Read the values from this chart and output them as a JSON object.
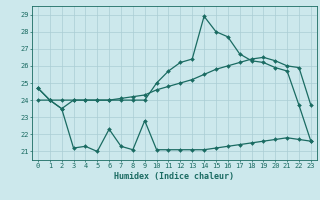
{
  "xlabel": "Humidex (Indice chaleur)",
  "bg_color": "#cce8ec",
  "grid_color": "#aacdd4",
  "line_color": "#1a6b62",
  "xlim": [
    -0.5,
    23.5
  ],
  "ylim": [
    20.5,
    29.5
  ],
  "xticks": [
    0,
    1,
    2,
    3,
    4,
    5,
    6,
    7,
    8,
    9,
    10,
    11,
    12,
    13,
    14,
    15,
    16,
    17,
    18,
    19,
    20,
    21,
    22,
    23
  ],
  "yticks": [
    21,
    22,
    23,
    24,
    25,
    26,
    27,
    28,
    29
  ],
  "line1_x": [
    0,
    1,
    2,
    3,
    4,
    5,
    6,
    7,
    8,
    9,
    10,
    11,
    12,
    13,
    14,
    15,
    16,
    17,
    18,
    19,
    20,
    21,
    22,
    23
  ],
  "line1_y": [
    24.7,
    24.0,
    23.5,
    21.2,
    21.3,
    21.0,
    22.3,
    21.3,
    21.1,
    22.8,
    21.1,
    21.1,
    21.1,
    21.1,
    21.1,
    21.2,
    21.3,
    21.4,
    21.5,
    21.6,
    21.7,
    21.8,
    21.7,
    21.6
  ],
  "line2_x": [
    0,
    1,
    2,
    3,
    4,
    5,
    6,
    7,
    8,
    9,
    10,
    11,
    12,
    13,
    14,
    15,
    16,
    17,
    18,
    19,
    20,
    21,
    22,
    23
  ],
  "line2_y": [
    24.0,
    24.0,
    24.0,
    24.0,
    24.0,
    24.0,
    24.0,
    24.1,
    24.2,
    24.3,
    24.6,
    24.8,
    25.0,
    25.2,
    25.5,
    25.8,
    26.0,
    26.2,
    26.4,
    26.5,
    26.3,
    26.0,
    25.9,
    23.7
  ],
  "line3_x": [
    0,
    1,
    2,
    3,
    4,
    5,
    6,
    7,
    8,
    9,
    10,
    11,
    12,
    13,
    14,
    15,
    16,
    17,
    18,
    19,
    20,
    21,
    22,
    23
  ],
  "line3_y": [
    24.7,
    24.0,
    23.5,
    24.0,
    24.0,
    24.0,
    24.0,
    24.0,
    24.0,
    24.0,
    25.0,
    25.7,
    26.2,
    26.4,
    28.9,
    28.0,
    27.7,
    26.7,
    26.3,
    26.2,
    25.9,
    25.7,
    23.7,
    21.6
  ],
  "markersize": 2.0,
  "linewidth": 0.9,
  "tick_fontsize": 5.0,
  "xlabel_fontsize": 6.0
}
